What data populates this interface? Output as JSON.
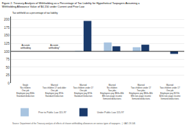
{
  "chart_data": {
    "type": "bar",
    "title": "Figure 2. Treasury Analysis of Withholding as a Percentage of Tax Liability for Hypothetical Taxpayers Assuming a\nWithholding Allowance Value of $4,150 under Current and Prior Law",
    "ylabel": "Tax withheld as a percentage of tax liability",
    "categories": [
      "Single\nNo children\nOne job\nEmployee pay $30k\nStandard deduction",
      "Married\nTwo children 17 and older\nOne job\nEmployee pay $70k\nStandard Deduction",
      "Married\nTwo children under 17\nOne job\nEmployee pay $70k\nStandard Deduction",
      "Married\nNo children\nTwo jobs\nEmployees pay $80k+$0k\n$9k non-wage income\nItemized deductions",
      "Married\nTwo children under 17\nTwo jobs\nEmployees pay $80k+$0k\n$9k non-wage income\nItemized deductions",
      "Married\nTwo children under 17\nOne job\nEmployee pay $170k\n$20k non-wage income\nItemized deductions"
    ],
    "series": [
      {
        "name": "Prior to Public Law 115-97",
        "color": "#a8c4e0",
        "values": [
          100,
          100,
          102,
          128,
          113,
          100
        ]
      },
      {
        "name": "Under Public Law 115-97",
        "color": "#1a3a6b",
        "values": [
          100,
          100,
          196,
          116,
          121,
          92
        ]
      }
    ],
    "baseline": 100,
    "ylim": [
      0,
      210
    ],
    "yticks": [
      0,
      25,
      50,
      75,
      100,
      125,
      150,
      175,
      200
    ],
    "grid": true,
    "legend": "bottom",
    "annotations": [
      {
        "category": "Single\nNo children\nOne job\nEmployee pay $30k\nStandard deduction",
        "text": "Accurate\nwithholding"
      },
      {
        "category": "Married\nTwo children 17 and older\nOne job\nEmployee pay $70k\nStandard Deduction",
        "text": "Accurate\nwithholding*"
      }
    ],
    "source": "Source: Department of the Treasury analysis of effects of chosen withholding allowances on various types of taxpayers.  |  GAO-19-546"
  }
}
